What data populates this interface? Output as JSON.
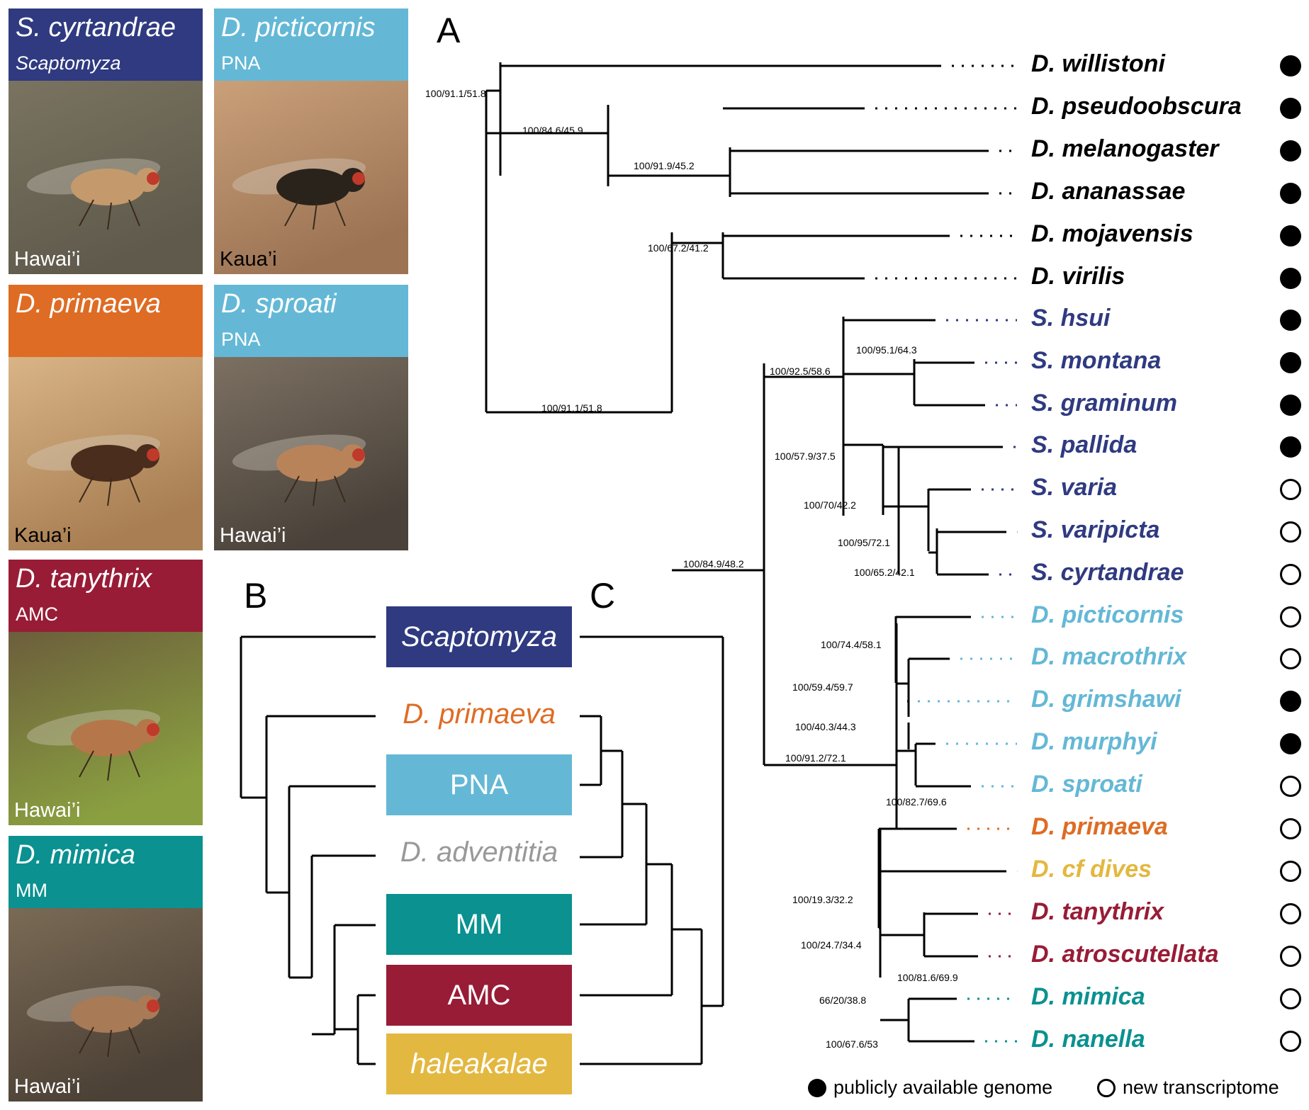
{
  "colors": {
    "scaptomyza": "#2f3a80",
    "pna": "#64b8d6",
    "primaeva": "#de6c24",
    "adventitia": "#999999",
    "mm": "#0a9190",
    "amc": "#981c36",
    "haleakalae": "#e3b840",
    "black": "#000000"
  },
  "panels": {
    "a": "A",
    "b": "B",
    "c": "C"
  },
  "photos": [
    {
      "name": "S. cyrtandrae",
      "sub": "Scaptomyza",
      "sub_italic": true,
      "location": "Hawai’i",
      "color": "scaptomyza"
    },
    {
      "name": "D. picticornis",
      "sub": "PNA",
      "sub_italic": false,
      "location": "Kaua’i",
      "color": "pna"
    },
    {
      "name": "D. primaeva",
      "sub": "",
      "sub_italic": false,
      "location": "Kaua’i",
      "color": "primaeva"
    },
    {
      "name": "D. sproati",
      "sub": "PNA",
      "sub_italic": false,
      "location": "Hawai’i",
      "color": "pna"
    },
    {
      "name": "D. tanythrix",
      "sub": "AMC",
      "sub_italic": false,
      "location": "Hawai’i",
      "color": "amc"
    },
    {
      "name": "D. mimica",
      "sub": "MM",
      "sub_italic": false,
      "location": "Hawai’i",
      "color": "mm"
    }
  ],
  "tree": {
    "taxa": [
      {
        "name": "D. willistoni",
        "color": "black",
        "data": "genome"
      },
      {
        "name": "D. pseudoobscura",
        "color": "black",
        "data": "genome"
      },
      {
        "name": "D. melanogaster",
        "color": "black",
        "data": "genome"
      },
      {
        "name": "D. ananassae",
        "color": "black",
        "data": "genome"
      },
      {
        "name": "D. mojavensis",
        "color": "black",
        "data": "genome"
      },
      {
        "name": "D. virilis",
        "color": "black",
        "data": "genome"
      },
      {
        "name": "S. hsui",
        "color": "scaptomyza",
        "data": "genome"
      },
      {
        "name": "S. montana",
        "color": "scaptomyza",
        "data": "genome"
      },
      {
        "name": "S. graminum",
        "color": "scaptomyza",
        "data": "genome"
      },
      {
        "name": "S. pallida",
        "color": "scaptomyza",
        "data": "genome"
      },
      {
        "name": "S. varia",
        "color": "scaptomyza",
        "data": "transcriptome"
      },
      {
        "name": "S. varipicta",
        "color": "scaptomyza",
        "data": "transcriptome"
      },
      {
        "name": "S. cyrtandrae",
        "color": "scaptomyza",
        "data": "transcriptome"
      },
      {
        "name": "D. picticornis",
        "color": "pna",
        "data": "transcriptome"
      },
      {
        "name": "D. macrothrix",
        "color": "pna",
        "data": "transcriptome"
      },
      {
        "name": "D. grimshawi",
        "color": "pna",
        "data": "genome"
      },
      {
        "name": "D. murphyi",
        "color": "pna",
        "data": "genome"
      },
      {
        "name": "D. sproati",
        "color": "pna",
        "data": "transcriptome"
      },
      {
        "name": "D. primaeva",
        "color": "primaeva",
        "data": "transcriptome"
      },
      {
        "name": "D. cf dives",
        "color": "haleakalae",
        "data": "transcriptome"
      },
      {
        "name": "D. tanythrix",
        "color": "amc",
        "data": "transcriptome"
      },
      {
        "name": "D. atroscutellata",
        "color": "amc",
        "data": "transcriptome"
      },
      {
        "name": "D. mimica",
        "color": "mm",
        "data": "transcriptome"
      },
      {
        "name": "D. nanella",
        "color": "mm",
        "data": "transcriptome"
      }
    ],
    "support": [
      "100/91.1/51.8",
      "100/84.6/45.9",
      "100/91.9/45.2",
      "100/67.2/41.2",
      "100/91.1/51.8",
      "100/92.5/58.6",
      "100/95.1/64.3",
      "100/57.9/37.5",
      "100/70/42.2",
      "100/95/72.1",
      "100/65.2/42.1",
      "100/84.9/48.2",
      "100/74.4/58.1",
      "100/59.4/59.7",
      "100/40.3/44.3",
      "100/91.2/72.1",
      "100/82.7/69.6",
      "100/19.3/32.2",
      "100/24.7/34.4",
      "100/81.6/69.9",
      "66/20/38.8",
      "100/67.6/53"
    ]
  },
  "clades": [
    {
      "label": "Scaptomyza",
      "style": "box",
      "color": "scaptomyza"
    },
    {
      "label": "D. primaeva",
      "style": "text",
      "color": "primaeva"
    },
    {
      "label": "PNA",
      "style": "box",
      "color": "pna"
    },
    {
      "label": "D. adventitia",
      "style": "text",
      "color": "adventitia"
    },
    {
      "label": "MM",
      "style": "box",
      "color": "mm"
    },
    {
      "label": "AMC",
      "style": "box",
      "color": "amc"
    },
    {
      "label": "haleakalae",
      "style": "box",
      "color": "haleakalae"
    }
  ],
  "legend": {
    "genome": "publicly available genome",
    "transcriptome": "new transcriptome"
  }
}
